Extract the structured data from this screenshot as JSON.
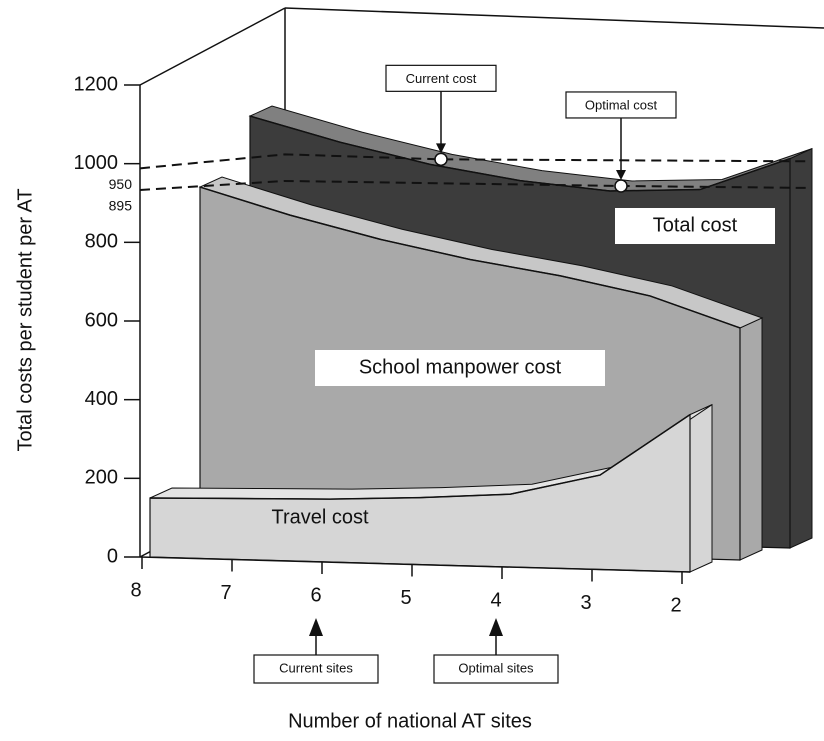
{
  "chart_data": {
    "type": "area",
    "x_label": "Number of national AT sites",
    "y_label": "Total costs per student per AT",
    "x": [
      8,
      7,
      6,
      5,
      4,
      3,
      2
    ],
    "xlim": [
      8,
      2
    ],
    "xticks": [
      8,
      7,
      6,
      5,
      4,
      3,
      2
    ],
    "ylim": [
      0,
      1200
    ],
    "yticks": [
      0,
      200,
      400,
      600,
      800,
      1000,
      1200
    ],
    "reference_values": [
      950,
      895
    ],
    "series": [
      {
        "name": "Travel cost",
        "color": "#d6d6d6",
        "values": [
          150,
          155,
          160,
          170,
          185,
          240,
          400
        ]
      },
      {
        "name": "School manpower cost",
        "color": "#a9a9a9",
        "values": [
          910,
          845,
          790,
          745,
          710,
          665,
          590
        ]
      },
      {
        "name": "Total cost",
        "color": "#3c3c3c",
        "values": [
          1060,
          1000,
          950,
          915,
          895,
          905,
          990
        ]
      }
    ],
    "annotations": [
      {
        "text": "Current cost",
        "x": 6
      },
      {
        "text": "Optimal cost",
        "x": 4
      },
      {
        "text": "Current sites",
        "x": 6
      },
      {
        "text": "Optimal sites",
        "x": 4
      }
    ]
  }
}
